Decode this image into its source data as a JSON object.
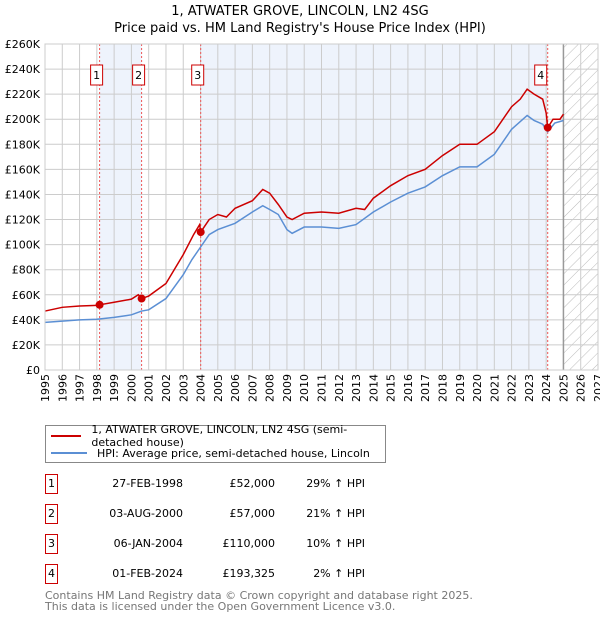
{
  "title": "1, ATWATER GROVE, LINCOLN, LN2 4SG",
  "subtitle": "Price paid vs. HM Land Registry's House Price Index (HPI)",
  "colors": {
    "property": "#cc0000",
    "hpi": "#5b8fd4",
    "shade": "#eef3fc"
  },
  "chart_data": {
    "type": "line",
    "title": "1, ATWATER GROVE, LINCOLN, LN2 4SG",
    "subtitle": "Price paid vs. HM Land Registry's House Price Index (HPI)",
    "xlim": [
      1995,
      2027
    ],
    "ylim": [
      0,
      260000
    ],
    "x_ticks": [
      "1995",
      "1996",
      "1997",
      "1998",
      "1999",
      "2000",
      "2001",
      "2002",
      "2003",
      "2004",
      "2005",
      "2006",
      "2007",
      "2008",
      "2009",
      "2010",
      "2011",
      "2012",
      "2013",
      "2014",
      "2015",
      "2016",
      "2017",
      "2018",
      "2019",
      "2020",
      "2021",
      "2022",
      "2023",
      "2024",
      "2025",
      "2026",
      "2027"
    ],
    "y_ticks": [
      "£0",
      "£20K",
      "£40K",
      "£60K",
      "£80K",
      "£100K",
      "£120K",
      "£140K",
      "£160K",
      "£180K",
      "£200K",
      "£220K",
      "£240K",
      "£260K"
    ],
    "grid": true,
    "series": [
      {
        "name": "1, ATWATER GROVE, LINCOLN, LN2 4SG (semi-detached house)",
        "color": "#cc0000",
        "x": [
          1995,
          1996,
          1997,
          1998,
          1998.16,
          1999,
          2000,
          2000.4,
          2000.59,
          2001,
          2002,
          2003,
          2003.6,
          2003.95,
          2004.01,
          2004.5,
          2005,
          2005.5,
          2006,
          2007,
          2007.6,
          2008,
          2008.5,
          2009,
          2009.3,
          2010,
          2011,
          2012,
          2013,
          2013.5,
          2014,
          2015,
          2016,
          2017,
          2018,
          2019,
          2020,
          2021,
          2022,
          2022.5,
          2022.9,
          2023.3,
          2023.8,
          2024,
          2024.09,
          2024.4,
          2024.8,
          2025
        ],
        "y": [
          47000,
          50000,
          51000,
          51500,
          52000,
          54000,
          56500,
          60000,
          57000,
          59000,
          69000,
          92000,
          108000,
          116000,
          110000,
          120000,
          124000,
          122000,
          129000,
          135000,
          144000,
          141000,
          132000,
          122000,
          120000,
          125000,
          126000,
          125000,
          129000,
          128000,
          137000,
          147000,
          155000,
          160000,
          171000,
          180000,
          180000,
          190000,
          210000,
          216000,
          224000,
          220000,
          216000,
          205000,
          193325,
          200000,
          200000,
          204000
        ]
      },
      {
        "name": "HPI: Average price, semi-detached house, Lincoln",
        "color": "#5b8fd4",
        "x": [
          1995,
          1996,
          1997,
          1998,
          1999,
          2000,
          2000.59,
          2001,
          2002,
          2003,
          2003.5,
          2004,
          2004.5,
          2005,
          2006,
          2007,
          2007.6,
          2008,
          2008.5,
          2009,
          2009.3,
          2010,
          2011,
          2012,
          2013,
          2014,
          2015,
          2016,
          2017,
          2018,
          2019,
          2020,
          2021,
          2022,
          2022.9,
          2023.3,
          2023.8,
          2024.09,
          2024.5,
          2025
        ],
        "y": [
          38000,
          39000,
          40000,
          40500,
          42000,
          44000,
          47000,
          48000,
          57000,
          76000,
          88000,
          98000,
          108000,
          112000,
          117000,
          126000,
          131000,
          128000,
          124000,
          112000,
          109000,
          114000,
          114000,
          113000,
          116000,
          126000,
          134000,
          141000,
          146000,
          155000,
          162000,
          162000,
          172000,
          192000,
          203000,
          199000,
          196000,
          190000,
          197000,
          199000
        ]
      }
    ],
    "sales": [
      {
        "label": "1",
        "x": 1998.16,
        "y": 52000,
        "date": "27-FEB-1998",
        "price": "£52,000",
        "hpi": "29% ↑ HPI"
      },
      {
        "label": "2",
        "x": 2000.59,
        "y": 57000,
        "date": "03-AUG-2000",
        "price": "£57,000",
        "hpi": "21% ↑ HPI"
      },
      {
        "label": "3",
        "x": 2004.01,
        "y": 110000,
        "date": "06-JAN-2004",
        "price": "£110,000",
        "hpi": "10% ↑ HPI"
      },
      {
        "label": "4",
        "x": 2024.09,
        "y": 193325,
        "date": "01-FEB-2024",
        "price": "£193,325",
        "hpi": "2% ↑ HPI"
      }
    ],
    "shaded_ranges": [
      [
        1998.16,
        2000.59
      ],
      [
        2004.01,
        2024.09
      ]
    ],
    "forecast_start": 2025,
    "legend_placement": "below"
  },
  "legend": {
    "property": "1, ATWATER GROVE, LINCOLN, LN2 4SG (semi-detached house)",
    "hpi": "HPI: Average price, semi-detached house, Lincoln"
  },
  "footer": {
    "line1": "Contains HM Land Registry data © Crown copyright and database right 2025.",
    "line2": "This data is licensed under the Open Government Licence v3.0."
  }
}
